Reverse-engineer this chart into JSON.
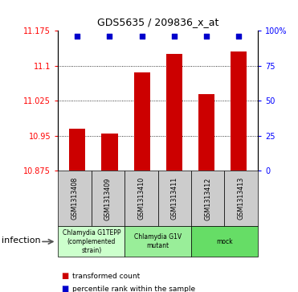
{
  "title": "GDS5635 / 209836_x_at",
  "samples": [
    "GSM1313408",
    "GSM1313409",
    "GSM1313410",
    "GSM1313411",
    "GSM1313412",
    "GSM1313413"
  ],
  "bar_values": [
    10.965,
    10.955,
    11.085,
    11.125,
    11.04,
    11.13
  ],
  "percentile_y": [
    11.163,
    11.163,
    11.163,
    11.163,
    11.163,
    11.163
  ],
  "bar_color": "#cc0000",
  "dot_color": "#0000cc",
  "ymin": 10.875,
  "ymax": 11.175,
  "yticks": [
    10.875,
    10.95,
    11.025,
    11.1,
    11.175
  ],
  "ytick_labels": [
    "10.875",
    "10.95",
    "11.025",
    "11.1",
    "11.175"
  ],
  "right_yticks": [
    0,
    25,
    50,
    75,
    100
  ],
  "right_ytick_labels": [
    "0",
    "25",
    "50",
    "75",
    "100%"
  ],
  "groups": [
    {
      "label": "Chlamydia G1TEPP\n(complemented\nstrain)",
      "start": 0,
      "end": 2,
      "color": "#ccffcc"
    },
    {
      "label": "Chlamydia G1V\nmutant",
      "start": 2,
      "end": 4,
      "color": "#99ee99"
    },
    {
      "label": "mock",
      "start": 4,
      "end": 6,
      "color": "#66dd66"
    }
  ],
  "factor_label": "infection",
  "legend_bar_label": "transformed count",
  "legend_dot_label": "percentile rank within the sample",
  "bar_width": 0.5,
  "sample_box_color": "#cccccc"
}
